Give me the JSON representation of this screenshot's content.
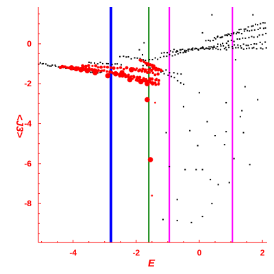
{
  "chart_data": {
    "type": "scatter",
    "xlabel": "E",
    "ylabel": "<J3>",
    "xlim": [
      -5.1,
      2.15
    ],
    "ylim": [
      -9.95,
      1.85
    ],
    "x_ticks": [
      -4,
      -2,
      0,
      2
    ],
    "x_tick_labels": [
      "-4",
      "-2",
      "0",
      "2"
    ],
    "y_ticks": [
      0,
      -2,
      -4,
      -6,
      -8
    ],
    "y_tick_labels": [
      "0",
      "-2",
      "-4",
      "-6",
      "-8"
    ],
    "grid": false,
    "colors": {
      "axis": "#ff0000",
      "text": "#ff0000",
      "black_points": "#000000",
      "red_points": "#ff0000",
      "blue_line": "#0000ff",
      "green_line": "#008000",
      "magenta_line": "#ff00ff"
    },
    "vertical_lines": [
      {
        "x": -2.8,
        "color": "#0000ff"
      },
      {
        "x": -1.6,
        "color": "#008000"
      },
      {
        "x": -0.95,
        "color": "#ff00ff"
      },
      {
        "x": 1.05,
        "color": "#ff00ff"
      }
    ],
    "black_bands": [
      {
        "x0": -5.1,
        "y0": -1.0,
        "x1": -3.1,
        "y1": -1.45,
        "n": 36
      },
      {
        "x0": -3.5,
        "y0": -0.95,
        "x1": -2.5,
        "y1": -1.05,
        "n": 12
      },
      {
        "x0": -2.5,
        "y0": -0.65,
        "x1": -1.5,
        "y1": -0.85,
        "n": 12
      },
      {
        "x0": -1.4,
        "y0": -0.75,
        "x1": 2.1,
        "y1": 0.5,
        "n": 40
      },
      {
        "x0": -1.2,
        "y0": -0.45,
        "x1": 2.1,
        "y1": 0.05,
        "n": 38
      },
      {
        "x0": -0.8,
        "y0": -0.3,
        "x1": 2.1,
        "y1": -0.2,
        "n": 34
      },
      {
        "x0": 0.2,
        "y0": 0.1,
        "x1": 2.1,
        "y1": 1.1,
        "n": 26
      },
      {
        "x0": 0.5,
        "y0": 0.3,
        "x1": 2.1,
        "y1": 0.8,
        "n": 20
      },
      {
        "x0": -1.8,
        "y0": -1.1,
        "x1": -0.6,
        "y1": -1.5,
        "n": 12
      },
      {
        "x0": -1.2,
        "y0": -1.4,
        "x1": -0.5,
        "y1": -2.0,
        "n": 8
      }
    ],
    "black_scatter": [
      [
        -1.75,
        0.05
      ],
      [
        -1.9,
        -0.3
      ],
      [
        -1.8,
        -0.55
      ],
      [
        -0.95,
        -6.15
      ],
      [
        -0.7,
        -7.8
      ],
      [
        -0.3,
        -4.35
      ],
      [
        -0.05,
        -5.1
      ],
      [
        -0.1,
        -6.3
      ],
      [
        -0.45,
        -6.3
      ],
      [
        0.1,
        -6.3
      ],
      [
        0.1,
        -8.65
      ],
      [
        0.5,
        -4.6
      ],
      [
        0.6,
        -7.05
      ],
      [
        0.8,
        -5.05
      ],
      [
        0.85,
        -4.4
      ],
      [
        0.85,
        -2.95
      ],
      [
        0.95,
        -6.95
      ],
      [
        0.4,
        -8.0
      ],
      [
        0.35,
        -6.8
      ],
      [
        1.1,
        -5.75
      ],
      [
        1.3,
        -3.65
      ],
      [
        1.4,
        -4.45
      ],
      [
        1.45,
        -2.15
      ],
      [
        1.6,
        -6.05
      ],
      [
        1.85,
        -2.8
      ],
      [
        1.35,
        -3.35
      ],
      [
        -1.15,
        -8.8
      ],
      [
        -0.7,
        -8.85
      ],
      [
        -0.25,
        -8.95
      ],
      [
        0.0,
        -2.45
      ],
      [
        -0.5,
        -3.15
      ],
      [
        -1.05,
        -4.45
      ],
      [
        0.25,
        -3.9
      ],
      [
        1.15,
        -0.8
      ],
      [
        0.1,
        0.55
      ],
      [
        0.4,
        1.45
      ],
      [
        1.7,
        1.45
      ]
    ],
    "red_bands": [
      {
        "x0": -4.4,
        "y0": -1.15,
        "x1": -3.2,
        "y1": -1.35,
        "n": 22
      },
      {
        "x0": -3.7,
        "y0": -1.1,
        "x1": -1.2,
        "y1": -1.35,
        "n": 26
      },
      {
        "x0": -3.7,
        "y0": -1.2,
        "x1": -1.3,
        "y1": -1.85,
        "n": 26
      },
      {
        "x0": -3.1,
        "y0": -1.3,
        "x1": -1.3,
        "y1": -2.0,
        "n": 22
      },
      {
        "x0": -2.5,
        "y0": -1.6,
        "x1": -1.3,
        "y1": -2.05,
        "n": 16
      },
      {
        "x0": -2.1,
        "y0": -1.25,
        "x1": -1.3,
        "y1": -1.55,
        "n": 10
      },
      {
        "x0": -1.9,
        "y0": -0.8,
        "x1": -1.3,
        "y1": -1.3,
        "n": 10
      },
      {
        "x0": -1.6,
        "y0": -0.95,
        "x1": -1.2,
        "y1": -1.35,
        "n": 8
      }
    ],
    "red_big": [
      [
        -4.05,
        -1.2
      ],
      [
        -3.9,
        -1.25
      ],
      [
        -3.75,
        -1.3
      ],
      [
        -3.55,
        -1.35
      ],
      [
        -2.65,
        -1.5
      ],
      [
        -2.45,
        -1.45
      ],
      [
        -2.15,
        -1.3
      ],
      [
        -1.65,
        -2.0
      ],
      [
        -1.65,
        -2.8
      ],
      [
        -1.55,
        -5.8
      ],
      [
        -3.3,
        -1.45
      ],
      [
        -2.9,
        -1.6
      ],
      [
        -2.2,
        -1.8
      ],
      [
        -1.85,
        -1.9
      ]
    ],
    "red_isolated": [
      [
        -1.4,
        -2.95
      ],
      [
        -1.5,
        -7.6
      ],
      [
        -1.35,
        -1.75
      ]
    ]
  }
}
